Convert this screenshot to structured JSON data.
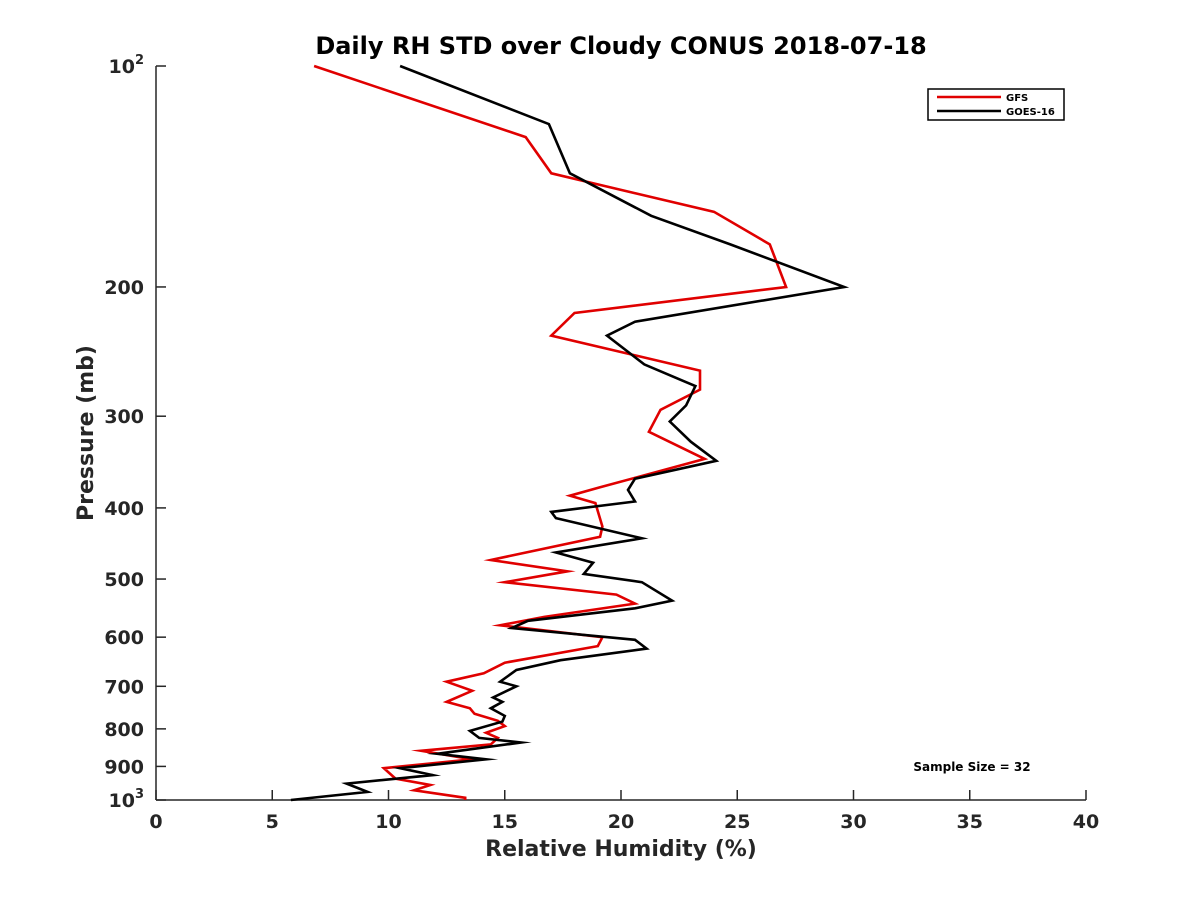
{
  "chart_data": {
    "type": "line",
    "title": "Daily RH STD over Cloudy CONUS 2018-07-18",
    "xlabel": "Relative Humidity (%)",
    "ylabel": "Pressure (mb)",
    "xlim": [
      0,
      40
    ],
    "ylim": [
      100,
      1000
    ],
    "yscale": "log",
    "y_reversed": true,
    "x_ticks": [
      0,
      5,
      10,
      15,
      20,
      25,
      30,
      35,
      40
    ],
    "x_tick_labels": [
      "0",
      "5",
      "10",
      "15",
      "20",
      "25",
      "30",
      "35",
      "40"
    ],
    "y_ticks": [
      {
        "value": 100,
        "base": "10",
        "exp": "2"
      },
      {
        "value": 200,
        "base": "200",
        "exp": ""
      },
      {
        "value": 300,
        "base": "300",
        "exp": ""
      },
      {
        "value": 400,
        "base": "400",
        "exp": ""
      },
      {
        "value": 500,
        "base": "500",
        "exp": ""
      },
      {
        "value": 600,
        "base": "600",
        "exp": ""
      },
      {
        "value": 700,
        "base": "700",
        "exp": ""
      },
      {
        "value": 800,
        "base": "800",
        "exp": ""
      },
      {
        "value": 900,
        "base": "900",
        "exp": ""
      },
      {
        "value": 1000,
        "base": "10",
        "exp": "3"
      }
    ],
    "grid": false,
    "legend_position": "top-right",
    "annotation": "Sample Size = 32",
    "series": [
      {
        "name": "GFS",
        "color": "#e00000",
        "points": [
          [
            6.8,
            100
          ],
          [
            15.9,
            125
          ],
          [
            17.0,
            140
          ],
          [
            19.0,
            145
          ],
          [
            24.0,
            158
          ],
          [
            26.4,
            175
          ],
          [
            27.1,
            200
          ],
          [
            18.0,
            217
          ],
          [
            17.0,
            233
          ],
          [
            23.4,
            260
          ],
          [
            23.4,
            276
          ],
          [
            21.7,
            294
          ],
          [
            21.2,
            315
          ],
          [
            23.6,
            343
          ],
          [
            19.1,
            375
          ],
          [
            17.8,
            385
          ],
          [
            18.9,
            394
          ],
          [
            19.2,
            424
          ],
          [
            19.1,
            438
          ],
          [
            14.4,
            471
          ],
          [
            17.7,
            488
          ],
          [
            15.0,
            505
          ],
          [
            19.8,
            525
          ],
          [
            20.6,
            540
          ],
          [
            16.7,
            563
          ],
          [
            14.8,
            578
          ],
          [
            19.2,
            600
          ],
          [
            19.0,
            617
          ],
          [
            15.0,
            650
          ],
          [
            14.1,
            672
          ],
          [
            12.5,
            690
          ],
          [
            13.6,
            710
          ],
          [
            12.5,
            735
          ],
          [
            13.5,
            750
          ],
          [
            13.7,
            763
          ],
          [
            14.7,
            780
          ],
          [
            15.0,
            793
          ],
          [
            14.2,
            810
          ],
          [
            14.7,
            823
          ],
          [
            14.4,
            840
          ],
          [
            11.4,
            857
          ],
          [
            13.6,
            880
          ],
          [
            9.8,
            905
          ],
          [
            10.3,
            935
          ],
          [
            11.8,
            954
          ],
          [
            11.1,
            970
          ],
          [
            13.3,
            993
          ],
          [
            13.3,
            1000
          ]
        ]
      },
      {
        "name": "GOES-16",
        "color": "#000000",
        "points": [
          [
            10.5,
            100
          ],
          [
            16.9,
            120
          ],
          [
            17.8,
            140
          ],
          [
            21.3,
            160
          ],
          [
            24.7,
            175
          ],
          [
            29.6,
            200
          ],
          [
            20.6,
            223
          ],
          [
            19.4,
            233
          ],
          [
            21.0,
            255
          ],
          [
            23.2,
            273
          ],
          [
            22.8,
            290
          ],
          [
            22.1,
            305
          ],
          [
            23.0,
            325
          ],
          [
            24.1,
            345
          ],
          [
            20.6,
            365
          ],
          [
            20.3,
            378
          ],
          [
            20.6,
            392
          ],
          [
            17.0,
            405
          ],
          [
            17.2,
            413
          ],
          [
            20.9,
            440
          ],
          [
            17.2,
            460
          ],
          [
            18.8,
            475
          ],
          [
            18.4,
            492
          ],
          [
            20.9,
            505
          ],
          [
            22.2,
            535
          ],
          [
            20.6,
            548
          ],
          [
            16.0,
            570
          ],
          [
            15.3,
            583
          ],
          [
            20.6,
            605
          ],
          [
            21.1,
            622
          ],
          [
            17.4,
            645
          ],
          [
            15.5,
            665
          ],
          [
            14.8,
            690
          ],
          [
            15.5,
            700
          ],
          [
            14.5,
            725
          ],
          [
            14.9,
            735
          ],
          [
            14.4,
            750
          ],
          [
            15.0,
            768
          ],
          [
            14.9,
            782
          ],
          [
            13.5,
            805
          ],
          [
            13.9,
            823
          ],
          [
            15.7,
            835
          ],
          [
            12.1,
            865
          ],
          [
            14.2,
            880
          ],
          [
            10.5,
            905
          ],
          [
            11.9,
            925
          ],
          [
            8.2,
            950
          ],
          [
            9.1,
            975
          ],
          [
            5.8,
            1000
          ]
        ]
      }
    ]
  }
}
